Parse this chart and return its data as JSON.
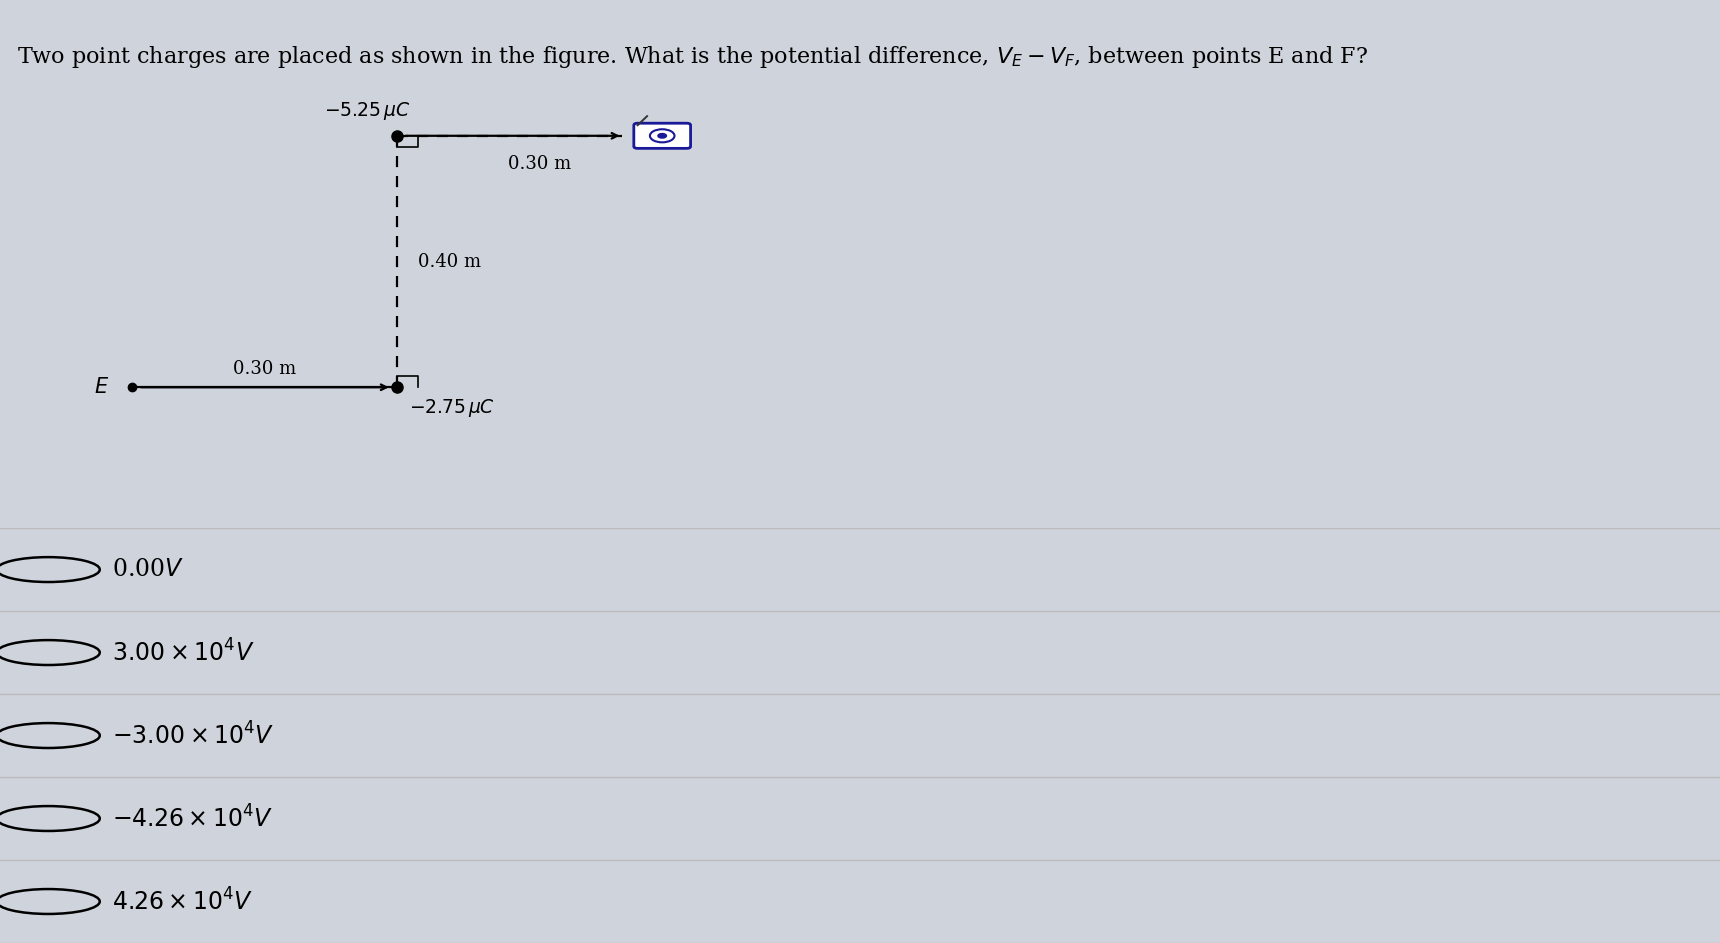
{
  "bg_color": "#cfd3db",
  "title_text": "Two point charges are placed as shown in the figure. What is the potential difference, $V_E - V_F$, between points E and F?",
  "title_fontsize": 16,
  "charge1_label": "$-5.25\\,\\mu C$",
  "charge2_label": "$-2.75\\,\\mu C$",
  "dist_top": "0.30 m",
  "dist_vert": "0.40 m",
  "dist_bot": "0.30 m",
  "answer_texts": [
    "0.00$V$",
    "$3.00 \\times 10^{4}V$",
    "$-3.00 \\times 10^{4}V$",
    "$-4.26 \\times 10^{4}V$",
    "$4.26 \\times 10^{4}V$"
  ],
  "answer_fontsize": 17,
  "circle_color": "#000000",
  "line_color": "#bbbbbb",
  "diagram_line_color": "#000000",
  "dot_color": "#000000"
}
